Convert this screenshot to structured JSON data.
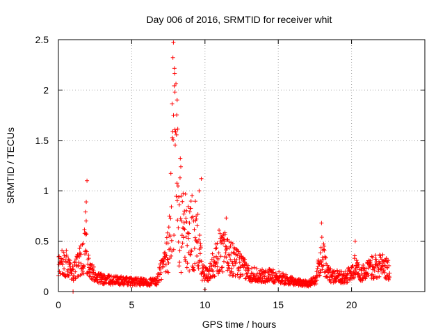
{
  "chart_data": {
    "type": "scatter",
    "title": "Day 006 of 2016, SRMTID for receiver whit",
    "xlabel": "GPS time / hours",
    "ylabel": "SRMTID / TECUs",
    "xlim": [
      0,
      25
    ],
    "ylim": [
      0,
      2.5
    ],
    "xticks": [
      0,
      5,
      10,
      15,
      20
    ],
    "xtick_labels": [
      "0",
      "5",
      "10",
      "15",
      "20"
    ],
    "yticks": [
      0,
      0.5,
      1,
      1.5,
      2,
      2.5
    ],
    "ytick_labels": [
      "0",
      "0.5",
      "1",
      "1.5",
      "2",
      "2.5"
    ],
    "grid": true,
    "marker": "+",
    "series": [
      {
        "name": "SRMTID",
        "color": "#ff0000",
        "profile": {
          "x": [
            0,
            0.5,
            1.0,
            1.4,
            1.7,
            1.9,
            2.0,
            2.2,
            2.6,
            3.0,
            4.0,
            5.0,
            6.0,
            6.7,
            7.0,
            7.3,
            7.6,
            7.8,
            7.9,
            8.1,
            8.4,
            8.8,
            9.2,
            9.6,
            9.8,
            10.2,
            10.6,
            11.0,
            11.5,
            12.0,
            12.5,
            13.0,
            14.0,
            14.5,
            15.0,
            16.0,
            17.0,
            17.6,
            17.9,
            18.1,
            18.4,
            19.0,
            19.5,
            20.0,
            20.3,
            20.6,
            21.0,
            21.5,
            22.0,
            22.6
          ],
          "y": [
            0.27,
            0.28,
            0.17,
            0.3,
            0.4,
            0.5,
            0.32,
            0.2,
            0.15,
            0.12,
            0.11,
            0.1,
            0.09,
            0.1,
            0.22,
            0.28,
            0.5,
            1.35,
            1.55,
            1.2,
            0.65,
            0.55,
            0.6,
            0.45,
            0.2,
            0.15,
            0.3,
            0.4,
            0.38,
            0.3,
            0.25,
            0.18,
            0.15,
            0.16,
            0.14,
            0.1,
            0.08,
            0.12,
            0.38,
            0.32,
            0.17,
            0.15,
            0.14,
            0.18,
            0.28,
            0.17,
            0.2,
            0.25,
            0.27,
            0.2
          ]
        },
        "peaks": [
          {
            "x": 1.95,
            "y": 1.1
          },
          {
            "x": 1.9,
            "y": 0.89
          },
          {
            "x": 1.85,
            "y": 0.79
          },
          {
            "x": 7.9,
            "y": 2.04
          },
          {
            "x": 7.95,
            "y": 1.98
          },
          {
            "x": 8.1,
            "y": 1.9
          },
          {
            "x": 7.85,
            "y": 1.75
          },
          {
            "x": 9.75,
            "y": 1.12
          },
          {
            "x": 9.6,
            "y": 1.0
          },
          {
            "x": 11.45,
            "y": 0.73
          },
          {
            "x": 17.95,
            "y": 0.68
          },
          {
            "x": 20.25,
            "y": 0.5
          },
          {
            "x": 1.0,
            "y": 0.0
          },
          {
            "x": 10.0,
            "y": 0.02
          }
        ],
        "n_points": 1300
      }
    ]
  }
}
